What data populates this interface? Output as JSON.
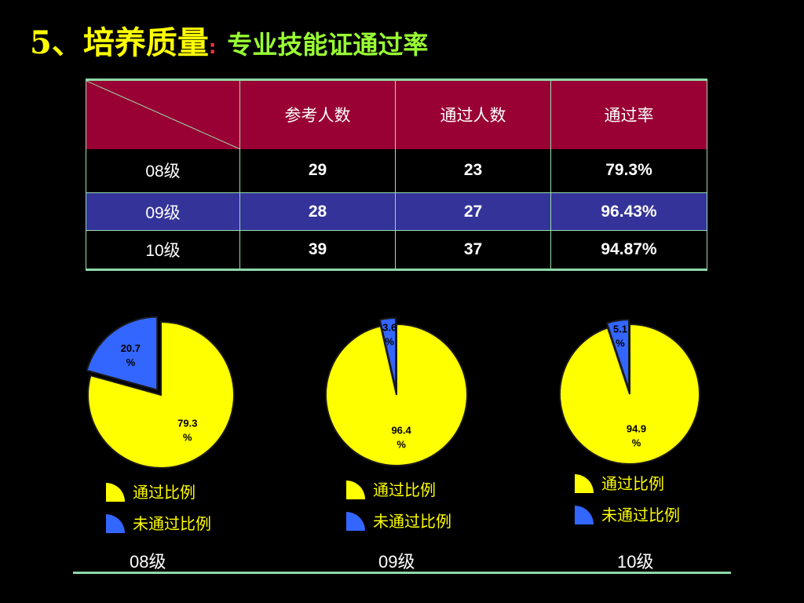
{
  "title": {
    "main": "5、培养质量",
    "colon": ":",
    "sub": "专业技能证通过率"
  },
  "table": {
    "headers": [
      "参考人数",
      "通过人数",
      "通过率"
    ],
    "rows": [
      {
        "label": "08级",
        "participants": "29",
        "passed": "23",
        "rate": "79.3%"
      },
      {
        "label": "09级",
        "participants": "28",
        "passed": "27",
        "rate": "96.43%"
      },
      {
        "label": "10级",
        "participants": "39",
        "passed": "37",
        "rate": "94.87%"
      }
    ]
  },
  "colors": {
    "pass": "#FFFF00",
    "fail": "#3366FF",
    "outline": "#1a1a1a"
  },
  "legend": {
    "pass_label": "通过比例",
    "fail_label": "未通过比例"
  },
  "chart_data": [
    {
      "type": "pie",
      "group": "08级",
      "slices": [
        {
          "name": "通过比例",
          "value": 79.3,
          "label_top": "79.3",
          "label_bottom": "%"
        },
        {
          "name": "未通过比例",
          "value": 20.7,
          "label_top": "20.7",
          "label_bottom": "%"
        }
      ]
    },
    {
      "type": "pie",
      "group": "09级",
      "slices": [
        {
          "name": "通过比例",
          "value": 96.4,
          "label_top": "96.4",
          "label_bottom": "%"
        },
        {
          "name": "未通过比例",
          "value": 3.6,
          "label_top": "3.6",
          "label_bottom": "%"
        }
      ]
    },
    {
      "type": "pie",
      "group": "10级",
      "slices": [
        {
          "name": "通过比例",
          "value": 94.9,
          "label_top": "94.9",
          "label_bottom": "%"
        },
        {
          "name": "未通过比例",
          "value": 5.1,
          "label_top": "5.1",
          "label_bottom": "%"
        }
      ]
    }
  ]
}
